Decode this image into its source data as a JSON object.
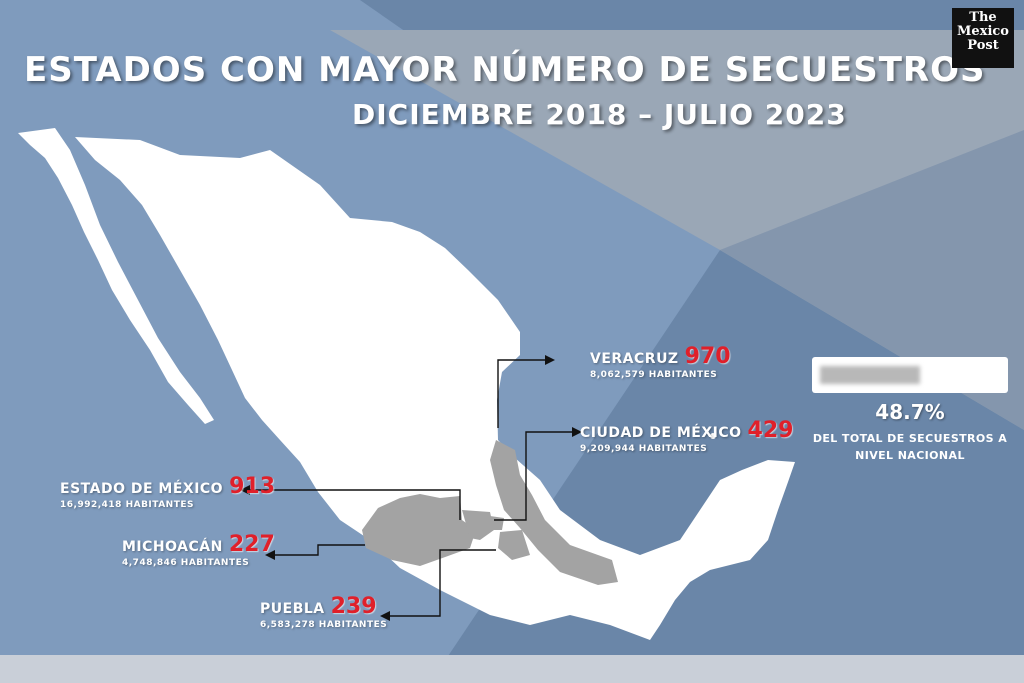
{
  "title": "ESTADOS CON MAYOR NÚMERO DE SECUESTROS",
  "subtitle": "DICIEMBRE 2018 – JULIO 2023",
  "logo": {
    "line1": "The",
    "line2": "Mexico",
    "line3": "Post"
  },
  "states": [
    {
      "key": "veracruz",
      "name": "VERACRUZ",
      "count": "970",
      "population": "8,062,579 HABITANTES"
    },
    {
      "key": "cdmx",
      "name": "CIUDAD DE MÉXICO",
      "count": "429",
      "population": "9,209,944 HABITANTES"
    },
    {
      "key": "edomex",
      "name": "ESTADO DE MÉXICO",
      "count": "913",
      "population": "16,992,418 HABITANTES"
    },
    {
      "key": "michoacan",
      "name": "MICHOACÁN",
      "count": "227",
      "population": "4,748,846 HABITANTES"
    },
    {
      "key": "puebla",
      "name": "PUEBLA",
      "count": "239",
      "population": "6,583,278 HABITANTES"
    }
  ],
  "stat": {
    "percent": "48.7%",
    "caption_line1": "DEL TOTAL DE SECUESTROS A",
    "caption_line2": "NIVEL NACIONAL"
  },
  "colors": {
    "background": "#6a86a8",
    "land": "#ffffff",
    "highlight": "#a3a3a3",
    "count": "#e0202a"
  }
}
